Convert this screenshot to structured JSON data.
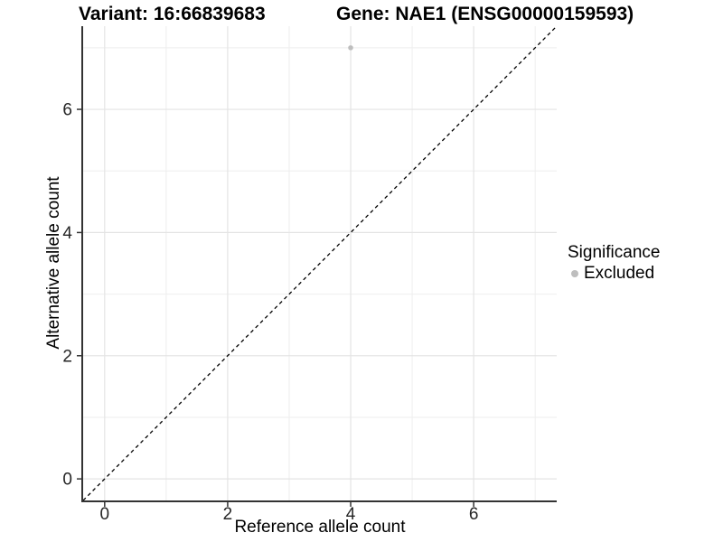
{
  "chart_data": {
    "type": "scatter",
    "title_left": "Variant: 16:66839683",
    "title_right": "Gene: NAE1 (ENSG00000159593)",
    "xlabel": "Reference allele count",
    "ylabel": "Alternative allele count",
    "xlim": [
      -0.35,
      7.35
    ],
    "ylim": [
      -0.35,
      7.35
    ],
    "x_major_ticks": [
      0,
      2,
      4,
      6
    ],
    "y_major_ticks": [
      0,
      2,
      4,
      6
    ],
    "x_minor_ticks": [
      1,
      3,
      5,
      7
    ],
    "y_minor_ticks": [
      1,
      3,
      5,
      7
    ],
    "grid": "on",
    "legend_position": "right",
    "series": [
      {
        "name": "Excluded",
        "color": "#bebebe",
        "points": [
          {
            "x": 4,
            "y": 7
          }
        ]
      }
    ],
    "identity_line": {
      "style": "dashed",
      "color": "#000000",
      "from": [
        -0.35,
        -0.35
      ],
      "to": [
        7.35,
        7.35
      ]
    },
    "legend": {
      "title": "Significance",
      "entries": [
        {
          "label": "Excluded",
          "color": "#bebebe"
        }
      ]
    },
    "colors": {
      "grid_major": "#e4e4e4",
      "grid_minor": "#eeeeee",
      "axis_line": "#333333",
      "tick_mark": "#333333",
      "tick_label": "#262626",
      "background": "#ffffff"
    }
  }
}
